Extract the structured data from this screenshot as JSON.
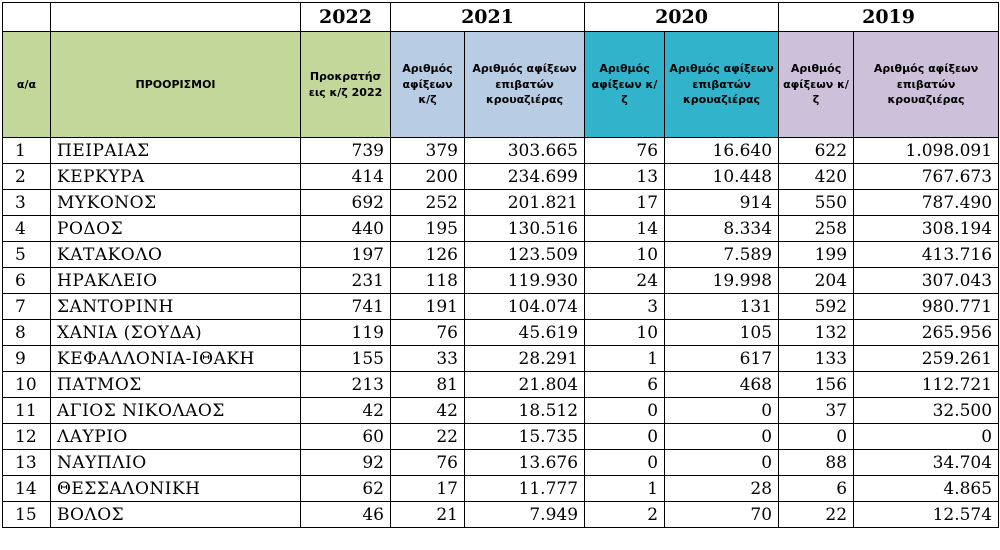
{
  "years": [
    "2022",
    "2021",
    "2020",
    "2019"
  ],
  "headers": {
    "index": "α/α",
    "destinations": "ΠΡΟΟΡΙΣΜΟΙ",
    "bookings_2022": "Προκρατήσ εις κ/ζ 2022",
    "arrivals_2021": "Αριθμός αφίξεων κ/ζ",
    "passengers_2021": "Αριθμός αφίξεων επιβατών κρουαζιέρας",
    "arrivals_2020": "Αριθμός αφίξεων κ/ζ",
    "passengers_2020": "Αριθμός αφίξεων επιβατών κρουαζιέρας",
    "arrivals_2019": "Αριθμός αφίξεων κ/ζ",
    "passengers_2019": "Αριθμός αφίξεων επιβατών κρουαζιέρας"
  },
  "colors": {
    "green": "#c4d79b",
    "blue": "#b8cce4",
    "teal": "#31b3cc",
    "lilac": "#ccc0da"
  },
  "rows": [
    [
      "1",
      "ΠΕΙΡΑΙΑΣ",
      "739",
      "379",
      "303.665",
      "76",
      "16.640",
      "622",
      "1.098.091"
    ],
    [
      "2",
      "ΚΕΡΚΥΡΑ",
      "414",
      "200",
      "234.699",
      "13",
      "10.448",
      "420",
      "767.673"
    ],
    [
      "3",
      "ΜΥΚΟΝΟΣ",
      "692",
      "252",
      "201.821",
      "17",
      "914",
      "550",
      "787.490"
    ],
    [
      "4",
      "ΡΟΔΟΣ",
      "440",
      "195",
      "130.516",
      "14",
      "8.334",
      "258",
      "308.194"
    ],
    [
      "5",
      "ΚΑΤΑΚΟΛΟ",
      "197",
      "126",
      "123.509",
      "10",
      "7.589",
      "199",
      "413.716"
    ],
    [
      "6",
      "ΗΡΑΚΛΕΙΟ",
      "231",
      "118",
      "119.930",
      "24",
      "19.998",
      "204",
      "307.043"
    ],
    [
      "7",
      "ΣΑΝΤΟΡΙΝΗ",
      "741",
      "191",
      "104.074",
      "3",
      "131",
      "592",
      "980.771"
    ],
    [
      "8",
      "ΧΑΝΙΑ (ΣΟΥΔΑ)",
      "119",
      "76",
      "45.619",
      "10",
      "105",
      "132",
      "265.956"
    ],
    [
      "9",
      "ΚΕΦΑΛΛΟΝΙΑ-ΙΘΑΚΗ",
      "155",
      "33",
      "28.291",
      "1",
      "617",
      "133",
      "259.261"
    ],
    [
      "10",
      "ΠΑΤΜΟΣ",
      "213",
      "81",
      "21.804",
      "6",
      "468",
      "156",
      "112.721"
    ],
    [
      "11",
      "ΑΓΙΟΣ ΝΙΚΟΛΑΟΣ",
      "42",
      "42",
      "18.512",
      "0",
      "0",
      "37",
      "32.500"
    ],
    [
      "12",
      "ΛΑΥΡΙΟ",
      "60",
      "22",
      "15.735",
      "0",
      "0",
      "0",
      "0"
    ],
    [
      "13",
      "ΝΑΥΠΛΙΟ",
      "92",
      "76",
      "13.676",
      "0",
      "0",
      "88",
      "34.704"
    ],
    [
      "14",
      "ΘΕΣΣΑΛΟΝΙΚΗ",
      "62",
      "17",
      "11.777",
      "1",
      "28",
      "6",
      "4.865"
    ],
    [
      "15",
      "ΒΟΛΟΣ",
      "46",
      "21",
      "7.949",
      "2",
      "70",
      "22",
      "12.574"
    ]
  ]
}
